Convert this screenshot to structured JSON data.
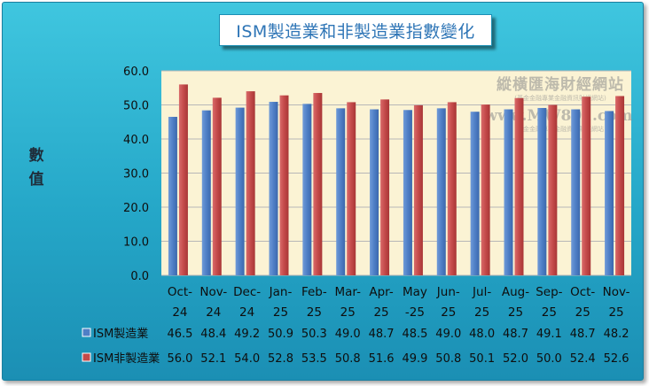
{
  "chart_data": {
    "type": "bar",
    "title": "ISM製造業和非製造業指數變化",
    "ylabel": "數值",
    "ylim": [
      0,
      60
    ],
    "yticks": [
      "0.0",
      "10.0",
      "20.0",
      "30.0",
      "40.0",
      "50.0",
      "60.0"
    ],
    "ytick_values": [
      0,
      10,
      20,
      30,
      40,
      50,
      60
    ],
    "categories": [
      [
        "Oct-",
        "24"
      ],
      [
        "Nov-",
        "24"
      ],
      [
        "Dec-",
        "24"
      ],
      [
        "Jan-",
        "25"
      ],
      [
        "Feb-",
        "25"
      ],
      [
        "Mar-",
        "25"
      ],
      [
        "Apr-",
        "25"
      ],
      [
        "May",
        "-25"
      ],
      [
        "Jun-",
        "25"
      ],
      [
        "Jul-",
        "25"
      ],
      [
        "Aug-",
        "25"
      ],
      [
        "Sep-",
        "25"
      ],
      [
        "Oct-",
        "25"
      ],
      [
        "Nov-",
        "25"
      ]
    ],
    "series": [
      {
        "name": "ISM製造業",
        "color": "#4f7fc6",
        "values": [
          46.5,
          48.4,
          49.2,
          50.9,
          50.3,
          49.0,
          48.7,
          48.5,
          49.0,
          48.0,
          48.7,
          49.1,
          48.7,
          48.2
        ],
        "labels": [
          "46.5",
          "48.4",
          "49.2",
          "50.9",
          "50.3",
          "49.0",
          "48.7",
          "48.5",
          "49.0",
          "48.0",
          "48.7",
          "49.1",
          "48.7",
          "48.2"
        ]
      },
      {
        "name": "ISM非製造業",
        "color": "#c44a4a",
        "values": [
          56.0,
          52.1,
          54.0,
          52.8,
          53.5,
          50.8,
          51.6,
          49.9,
          50.8,
          50.1,
          52.0,
          50.0,
          52.4,
          52.6
        ],
        "labels": [
          "56.0",
          "52.1",
          "54.0",
          "52.8",
          "53.5",
          "50.8",
          "51.6",
          "49.9",
          "50.8",
          "50.1",
          "52.0",
          "50.0",
          "52.4",
          "52.6"
        ]
      }
    ],
    "grid": true,
    "plot_background": "#fbf3d4",
    "legend": "data-table"
  },
  "watermark": {
    "name": "縱橫匯海財經網站",
    "subtitle": "(基金金融專業金融資訊財經網站)",
    "url": "www.MW801.com",
    "note": "基金金融專業金融資訊財經網站"
  }
}
